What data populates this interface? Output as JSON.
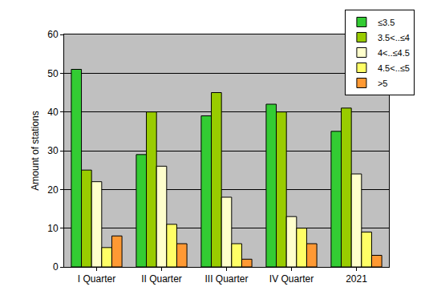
{
  "chart_data": {
    "type": "bar",
    "y_label": "Amount of stations",
    "categories": [
      "I Quarter",
      "II Quarter",
      "III Quarter",
      "IV Quarter",
      "2021"
    ],
    "series": [
      {
        "name": "≤3.5",
        "color": "#33cc33",
        "values": [
          51,
          29,
          39,
          42,
          35
        ]
      },
      {
        "name": "3.5<..≤4",
        "color": "#99cc00",
        "values": [
          25,
          40,
          45,
          40,
          41
        ]
      },
      {
        "name": "4<..≤4.5",
        "color": "#ffffcc",
        "values": [
          22,
          26,
          18,
          13,
          24
        ]
      },
      {
        "name": "4.5<..≤5",
        "color": "#ffff66",
        "values": [
          5,
          11,
          6,
          10,
          9
        ]
      },
      {
        "name": ">5",
        "color": "#ff9933",
        "values": [
          8,
          6,
          2,
          6,
          3
        ]
      }
    ],
    "ylim": [
      0,
      60
    ],
    "yticks": [
      0,
      10,
      20,
      30,
      40,
      50,
      60
    ],
    "grid": true,
    "legend": "top right"
  }
}
